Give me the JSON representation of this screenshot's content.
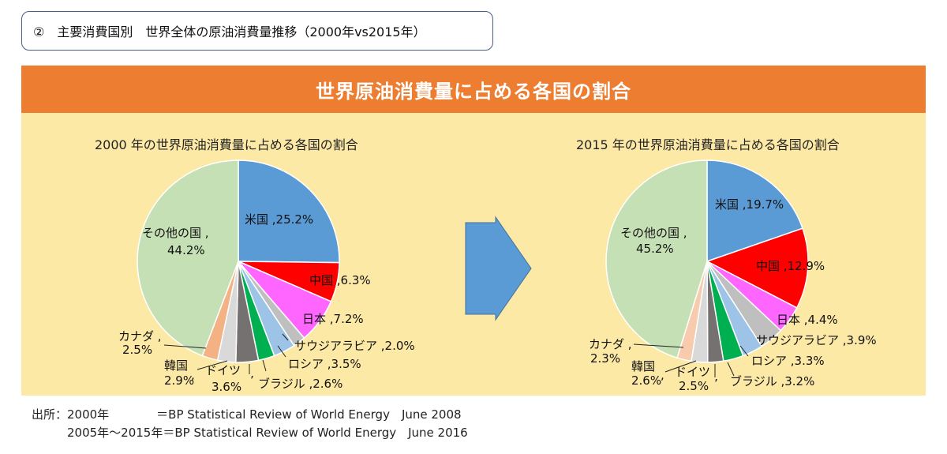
{
  "heading": "②　主要消費国別　世界全体の原油消費量推移（2000年vs2015年）",
  "banner_title": "世界原油消費量に占める各国の割合",
  "colors": {
    "banner": "#ec7d31",
    "panel": "#fde9a6",
    "arrow": "#5b9bd5"
  },
  "chart_data": [
    {
      "type": "pie",
      "title": "2000 年の世界原油消費量に占める各国の割合",
      "slices": [
        {
          "label": "米国 ,25.2%",
          "country": "米国",
          "value": 25.2,
          "color": "#5b9bd5"
        },
        {
          "label": "中国 ,6.3%",
          "country": "中国",
          "value": 6.3,
          "color": "#ff0000"
        },
        {
          "label": "日本 ,7.2%",
          "country": "日本",
          "value": 7.2,
          "color": "#ff66ff"
        },
        {
          "label": "サウジアラビア ,2.0%",
          "country": "サウジアラビア",
          "value": 2.0,
          "color": "#bfbfbf"
        },
        {
          "label": "ロシア ,3.5%",
          "country": "ロシア",
          "value": 3.5,
          "color": "#9dc3e6"
        },
        {
          "label": "ブラジル ,2.6%",
          "country": "ブラジル",
          "value": 2.6,
          "color": "#00b050"
        },
        {
          "label": "ドイツ ,3.6%",
          "country": "ドイツ",
          "value": 3.6,
          "color": "#767171"
        },
        {
          "label": "韓国 ,2.9%",
          "country": "韓国",
          "value": 2.9,
          "color": "#d9d9d9"
        },
        {
          "label": "カナダ ,2.5%",
          "country": "カナダ",
          "value": 2.5,
          "color": "#f4b183"
        },
        {
          "label": "その他の国 ,44.2%",
          "country": "その他の国",
          "value": 44.2,
          "color": "#c5e0b4"
        }
      ]
    },
    {
      "type": "pie",
      "title": "2015 年の世界原油消費量に占める各国の割合",
      "slices": [
        {
          "label": "米国 ,19.7%",
          "country": "米国",
          "value": 19.7,
          "color": "#5b9bd5"
        },
        {
          "label": "中国 ,12.9%",
          "country": "中国",
          "value": 12.9,
          "color": "#ff0000"
        },
        {
          "label": "日本 ,4.4%",
          "country": "日本",
          "value": 4.4,
          "color": "#ff66ff"
        },
        {
          "label": "サウジアラビア ,3.9%",
          "country": "サウジアラビア",
          "value": 3.9,
          "color": "#bfbfbf"
        },
        {
          "label": "ロシア ,3.3%",
          "country": "ロシア",
          "value": 3.3,
          "color": "#9dc3e6"
        },
        {
          "label": "ブラジル ,3.2%",
          "country": "ブラジル",
          "value": 3.2,
          "color": "#00b050"
        },
        {
          "label": "ドイツ ,2.5%",
          "country": "ドイツ",
          "value": 2.5,
          "color": "#767171"
        },
        {
          "label": "韓国 ,2.6%",
          "country": "韓国",
          "value": 2.6,
          "color": "#d9d9d9"
        },
        {
          "label": "カナダ ,2.3%",
          "country": "カナダ",
          "value": 2.3,
          "color": "#f8cbad"
        },
        {
          "label": "その他の国 ,45.2%",
          "country": "その他の国",
          "value": 45.2,
          "color": "#c5e0b4"
        }
      ]
    }
  ],
  "source": {
    "line1": "出所：2000年　　　　＝BP Statistical Review of World Energy　June 2008",
    "line2": "　　　2005年～2015年＝BP Statistical Review of World Energy　June 2016"
  }
}
